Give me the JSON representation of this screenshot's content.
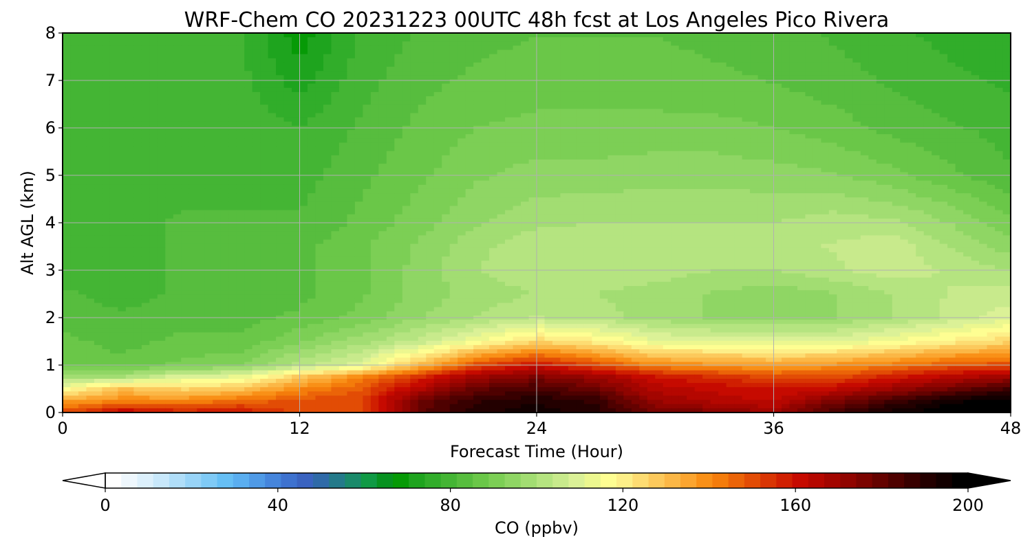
{
  "chart_data": {
    "type": "heatmap",
    "title": "WRF-Chem CO  20231223 00UTC 48h fcst at Los Angeles Pico Rivera",
    "xlabel": "Forecast Time (Hour)",
    "ylabel": "Alt AGL (km)",
    "xlim": [
      0,
      48
    ],
    "ylim": [
      0,
      8
    ],
    "x_ticks": [
      "0",
      "12",
      "24",
      "36",
      "48"
    ],
    "y_ticks": [
      "0",
      "1",
      "2",
      "3",
      "4",
      "5",
      "6",
      "7",
      "8"
    ],
    "grid": true,
    "colorbar": {
      "label": "CO  (ppbv)",
      "ticks": [
        "0",
        "40",
        "80",
        "120",
        "160",
        "200"
      ],
      "range": [
        0,
        200
      ],
      "extend": "both",
      "placement": "bottom"
    },
    "x_hours": [
      0,
      3,
      6,
      9,
      12,
      15,
      18,
      21,
      24,
      27,
      30,
      33,
      36,
      39,
      42,
      45,
      48
    ],
    "altitudes_km": [
      0,
      0.25,
      0.5,
      0.75,
      1,
      1.5,
      2,
      2.5,
      3,
      3.5,
      4,
      5,
      6,
      7,
      8
    ],
    "co_ppbv": [
      [
        150,
        165,
        158,
        160,
        150,
        150,
        180,
        192,
        195,
        190,
        178,
        175,
        170,
        185,
        195,
        200,
        200
      ],
      [
        135,
        140,
        140,
        145,
        150,
        150,
        178,
        188,
        192,
        188,
        170,
        165,
        162,
        175,
        185,
        195,
        200
      ],
      [
        115,
        130,
        125,
        128,
        140,
        148,
        165,
        180,
        185,
        178,
        165,
        162,
        160,
        162,
        170,
        178,
        185
      ],
      [
        100,
        100,
        110,
        112,
        128,
        140,
        155,
        170,
        175,
        170,
        160,
        155,
        150,
        150,
        158,
        165,
        170
      ],
      [
        88,
        86,
        90,
        92,
        102,
        110,
        130,
        150,
        160,
        150,
        140,
        138,
        135,
        138,
        142,
        148,
        150
      ],
      [
        86,
        84,
        86,
        86,
        92,
        98,
        105,
        115,
        125,
        120,
        112,
        110,
        110,
        110,
        115,
        120,
        125
      ],
      [
        84,
        82,
        84,
        84,
        86,
        90,
        96,
        100,
        104,
        102,
        98,
        96,
        95,
        96,
        100,
        105,
        110
      ],
      [
        82,
        80,
        82,
        82,
        84,
        88,
        94,
        98,
        100,
        100,
        98,
        96,
        94,
        96,
        100,
        104,
        105
      ],
      [
        80,
        80,
        82,
        82,
        84,
        88,
        94,
        100,
        103,
        103,
        102,
        100,
        100,
        103,
        106,
        103,
        100
      ],
      [
        78,
        80,
        82,
        82,
        84,
        88,
        93,
        99,
        103,
        103,
        103,
        103,
        103,
        104,
        106,
        100,
        94
      ],
      [
        78,
        80,
        82,
        82,
        82,
        86,
        91,
        96,
        99,
        100,
        100,
        100,
        100,
        102,
        101,
        96,
        90
      ],
      [
        78,
        79,
        80,
        80,
        80,
        84,
        88,
        92,
        94,
        94,
        95,
        95,
        94,
        93,
        90,
        86,
        82
      ],
      [
        78,
        79,
        80,
        80,
        78,
        82,
        86,
        89,
        90,
        90,
        90,
        90,
        89,
        87,
        84,
        82,
        80
      ],
      [
        79,
        79,
        80,
        79,
        72,
        80,
        84,
        86,
        87,
        87,
        87,
        86,
        85,
        83,
        81,
        79,
        77
      ],
      [
        80,
        80,
        78,
        78,
        68,
        78,
        82,
        84,
        85,
        85,
        85,
        84,
        83,
        81,
        79,
        76,
        74
      ]
    ],
    "colormap": [
      "#ffffff",
      "#eef7fd",
      "#dcf0fc",
      "#c8e8fb",
      "#b0def9",
      "#98d4f8",
      "#7fcaf6",
      "#66bff5",
      "#5aaef0",
      "#4f9ae6",
      "#4585dc",
      "#3e72cf",
      "#3a63c0",
      "#2f6aa8",
      "#247a8a",
      "#1a8a6a",
      "#109a45",
      "#079220",
      "#069a06",
      "#1ea41e",
      "#31ad2a",
      "#44b534",
      "#57bd3e",
      "#6ac748",
      "#7ccf55",
      "#8fd664",
      "#a2dd72",
      "#b5e480",
      "#c8ea8c",
      "#dbf197",
      "#ecf78f",
      "#fefe92",
      "#fdef88",
      "#fddc72",
      "#fcc95c",
      "#fbb746",
      "#fba530",
      "#f99017",
      "#f47c0b",
      "#eb6408",
      "#e24c05",
      "#d93503",
      "#d01f01",
      "#c60a00",
      "#b50700",
      "#a30500",
      "#900400",
      "#7b0300",
      "#640200",
      "#4e0100",
      "#380000",
      "#230000",
      "#120000",
      "#000000"
    ]
  }
}
